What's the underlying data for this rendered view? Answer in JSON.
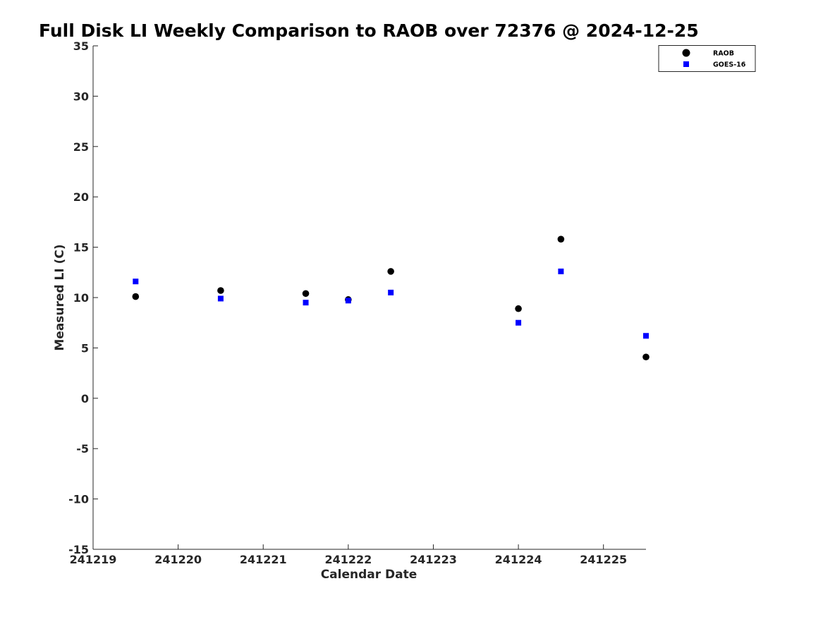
{
  "chart_data": {
    "type": "scatter",
    "title": "Full Disk LI Weekly Comparison to RAOB over 72376 @ 2024-12-25",
    "xlabel": "Calendar Date",
    "ylabel": "Measured LI (C)",
    "xlim": [
      241219,
      241225.5
    ],
    "ylim": [
      -15,
      35
    ],
    "x_ticks": [
      241219,
      241220,
      241221,
      241222,
      241223,
      241224,
      241225
    ],
    "x_tick_labels": [
      "241219",
      "241220",
      "241221",
      "241222",
      "241223",
      "241224",
      "241225"
    ],
    "y_ticks": [
      -15,
      -10,
      -5,
      0,
      5,
      10,
      15,
      20,
      25,
      30,
      35
    ],
    "y_tick_labels": [
      "-15",
      "-10",
      "-5",
      "0",
      "5",
      "10",
      "15",
      "20",
      "25",
      "30",
      "35"
    ],
    "grid": false,
    "legend": "top-right",
    "series": [
      {
        "name": "RAOB",
        "marker": "circle",
        "color": "#000000",
        "x": [
          241219.5,
          241220.5,
          241221.5,
          241222.0,
          241222.5,
          241224.0,
          241224.5,
          241225.5
        ],
        "y": [
          10.1,
          10.7,
          10.4,
          9.8,
          12.6,
          8.9,
          15.8,
          4.1
        ]
      },
      {
        "name": "GOES-16",
        "marker": "square",
        "color": "#0000ff",
        "x": [
          241219.5,
          241220.5,
          241221.5,
          241222.0,
          241222.5,
          241224.0,
          241224.5,
          241225.5
        ],
        "y": [
          11.6,
          9.9,
          9.5,
          9.7,
          10.5,
          7.5,
          12.6,
          6.2
        ]
      }
    ]
  }
}
